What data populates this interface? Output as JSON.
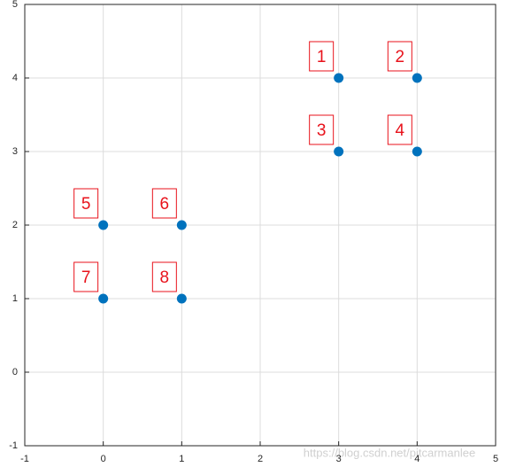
{
  "chart_data": {
    "type": "scatter",
    "x": [
      3,
      4,
      3,
      4,
      0,
      1,
      0,
      1
    ],
    "series": [
      {
        "color": "#0072bd",
        "values": [
          4,
          4,
          3,
          3,
          2,
          2,
          1,
          1
        ]
      }
    ],
    "point_labels": [
      "1",
      "2",
      "3",
      "4",
      "5",
      "6",
      "7",
      "8"
    ],
    "label_color": "#e8121b",
    "xlim": [
      -1,
      5
    ],
    "xticks": [
      -1,
      0,
      1,
      2,
      3,
      4,
      5
    ],
    "ylim": [
      -1,
      5
    ],
    "yticks": [
      -1,
      0,
      1,
      2,
      3,
      4,
      5
    ],
    "grid": true,
    "watermark": "https://blog.csdn.net/pitcarmanlee"
  }
}
